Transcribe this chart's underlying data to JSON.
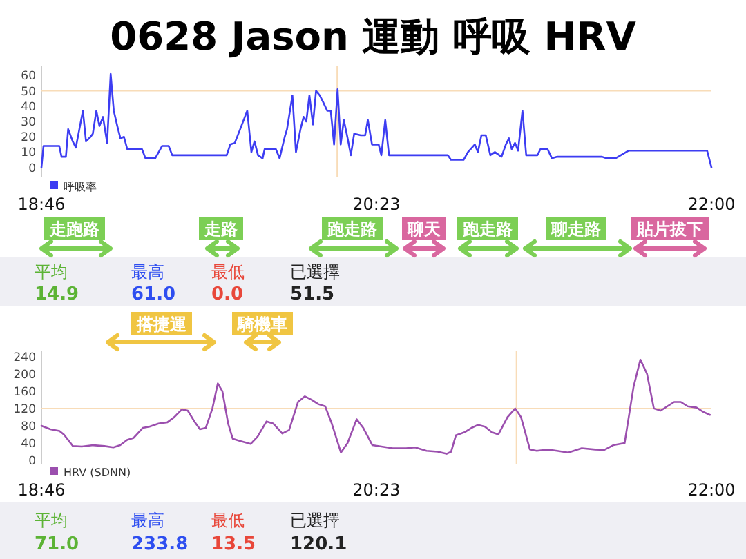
{
  "chart_data": [
    {
      "type": "line",
      "title": "0628 Jason 運動 呼吸 HRV",
      "xlim": [
        18.767,
        22.0
      ],
      "xticks": [
        {
          "value": 18.767,
          "label": "18:46"
        },
        {
          "value": 20.383,
          "label": "20:23"
        },
        {
          "value": 22.0,
          "label": "22:00"
        }
      ],
      "ylim": [
        -6,
        66
      ],
      "yticks": [
        0,
        10,
        20,
        30,
        40,
        50,
        60
      ],
      "legend": "bottom left",
      "ref_lines": [
        {
          "axis": "y",
          "value": 50,
          "color": "#f8dcb8"
        },
        {
          "axis": "x",
          "value": 20.194,
          "color": "#f8dcb8"
        }
      ],
      "series": [
        {
          "name": "呼吸率",
          "color": "#3d3df2",
          "x": [
            18.767,
            18.777,
            18.853,
            18.864,
            18.885,
            18.896,
            18.918,
            18.933,
            18.95,
            18.967,
            18.982,
            19.004,
            19.015,
            19.032,
            19.047,
            19.064,
            19.084,
            19.101,
            19.116,
            19.133,
            19.148,
            19.165,
            19.181,
            19.252,
            19.269,
            19.316,
            19.349,
            19.381,
            19.398,
            19.661,
            19.678,
            19.7,
            19.726,
            19.76,
            19.78,
            19.795,
            19.812,
            19.834,
            19.844,
            19.898,
            19.916,
            19.941,
            19.952,
            19.978,
            19.995,
            20.017,
            20.032,
            20.045,
            20.06,
            20.077,
            20.092,
            20.11,
            20.125,
            20.146,
            20.163,
            20.179,
            20.196,
            20.211,
            20.226,
            20.243,
            20.26,
            20.276,
            20.308,
            20.329,
            20.342,
            20.362,
            20.394,
            20.407,
            20.426,
            20.444,
            20.728,
            20.743,
            20.804,
            20.825,
            20.858,
            20.873,
            20.89,
            20.911,
            20.933,
            20.955,
            20.987,
            21.008,
            21.023,
            21.036,
            21.052,
            21.067,
            21.088,
            21.106,
            21.16,
            21.175,
            21.209,
            21.23,
            21.256,
            21.472,
            21.493,
            21.537,
            21.601,
            21.979,
            22.0
          ],
          "values": [
            0,
            14,
            14,
            7,
            7,
            25,
            17,
            13,
            25,
            37,
            17,
            20,
            22,
            37,
            27,
            33,
            16,
            61,
            37,
            27,
            19,
            20,
            12,
            12,
            6,
            6,
            14,
            14,
            8,
            8,
            15,
            16,
            25,
            37,
            10,
            17,
            8,
            6,
            12,
            12,
            6,
            20,
            25,
            47,
            10,
            25,
            33,
            30,
            47,
            28,
            50,
            47,
            43,
            37,
            37,
            15,
            51,
            15,
            31,
            20,
            8,
            22,
            21,
            21,
            31,
            15,
            15,
            8,
            31,
            8,
            8,
            5,
            5,
            10,
            15,
            10,
            21,
            21,
            8,
            10,
            7,
            15,
            19,
            12,
            16,
            11,
            37,
            8,
            8,
            12,
            12,
            6,
            7,
            7,
            6,
            6,
            11,
            11,
            0
          ]
        }
      ],
      "annotations": [
        "平均",
        "14.9",
        "最高",
        "61.0",
        "最低",
        "0.0",
        "已選擇",
        "51.5",
        "走跑路",
        "走路",
        "跑走路",
        "聊天",
        "跑走路",
        "聊走路",
        "貼片拔下"
      ]
    },
    {
      "type": "line",
      "xlim": [
        18.767,
        22.0
      ],
      "xticks": [
        {
          "value": 18.767,
          "label": "18:46"
        },
        {
          "value": 20.383,
          "label": "20:23"
        },
        {
          "value": 22.0,
          "label": "22:00"
        }
      ],
      "ylim": [
        -8,
        254
      ],
      "yticks": [
        0,
        40,
        80,
        120,
        160,
        200,
        240
      ],
      "legend": "bottom left",
      "ref_lines": [
        {
          "axis": "y",
          "value": 120,
          "color": "#f8dcb8"
        },
        {
          "axis": "x",
          "value": 21.059,
          "color": "#f8dcb8"
        }
      ],
      "series": [
        {
          "name": "HRV (SDNN)",
          "color": "#9b4fae",
          "x": [
            18.767,
            18.81,
            18.854,
            18.875,
            18.919,
            18.962,
            19.017,
            19.071,
            19.114,
            19.147,
            19.18,
            19.212,
            19.256,
            19.288,
            19.332,
            19.375,
            19.408,
            19.445,
            19.473,
            19.505,
            19.532,
            19.56,
            19.592,
            19.618,
            19.64,
            19.668,
            19.69,
            19.723,
            19.777,
            19.81,
            19.853,
            19.886,
            19.929,
            19.962,
            20.005,
            20.038,
            20.071,
            20.103,
            20.136,
            20.168,
            20.212,
            20.244,
            20.288,
            20.32,
            20.364,
            20.407,
            20.462,
            20.527,
            20.57,
            20.625,
            20.679,
            20.722,
            20.744,
            20.767,
            20.809,
            20.842,
            20.874,
            20.907,
            20.94,
            20.972,
            21.016,
            21.053,
            21.081,
            21.124,
            21.157,
            21.211,
            21.255,
            21.309,
            21.374,
            21.439,
            21.483,
            21.526,
            21.581,
            21.624,
            21.657,
            21.689,
            21.722,
            21.755,
            21.787,
            21.82,
            21.852,
            21.885,
            21.928,
            21.961,
            21.993
          ],
          "values": [
            80,
            72,
            68,
            60,
            33,
            32,
            35,
            33,
            30,
            35,
            47,
            52,
            75,
            78,
            85,
            88,
            100,
            118,
            115,
            90,
            72,
            75,
            120,
            178,
            160,
            85,
            50,
            45,
            38,
            55,
            90,
            85,
            62,
            70,
            135,
            148,
            140,
            130,
            125,
            85,
            18,
            40,
            95,
            75,
            35,
            32,
            28,
            28,
            30,
            22,
            20,
            15,
            20,
            58,
            65,
            75,
            82,
            78,
            65,
            60,
            100,
            120,
            100,
            25,
            22,
            25,
            22,
            18,
            28,
            25,
            24,
            35,
            40,
            170,
            233,
            200,
            120,
            115,
            125,
            135,
            135,
            125,
            122,
            112,
            105
          ]
        }
      ],
      "annotations": [
        "平均",
        "71.0",
        "最高",
        "233.8",
        "最低",
        "13.5",
        "已選擇",
        "120.1",
        "搭捷運",
        "騎機車"
      ]
    }
  ]
}
